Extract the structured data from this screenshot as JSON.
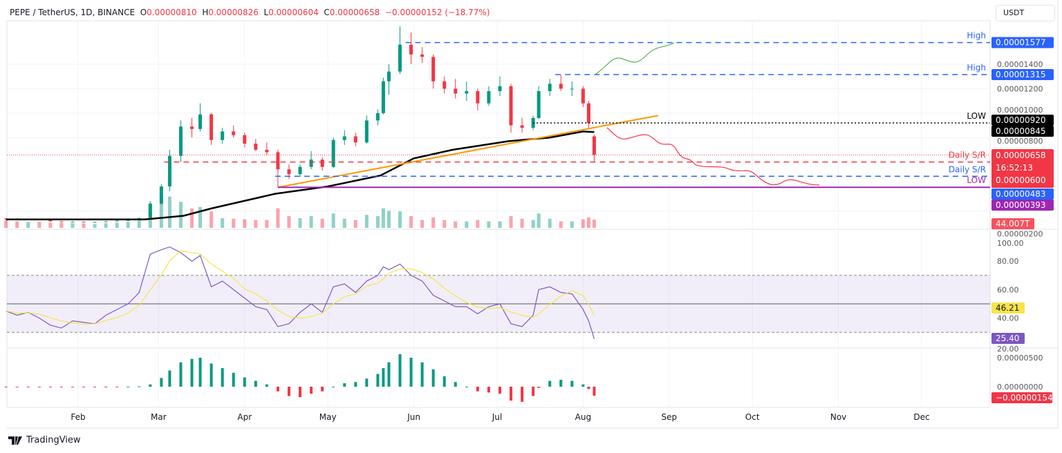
{
  "header": {
    "symbol": "PEPE / TetherUS, 1D, BINANCE",
    "o_label": "O",
    "o": "0.00000810",
    "h_label": "H",
    "h": "0.00000826",
    "l_label": "L",
    "l": "0.00000604",
    "c_label": "C",
    "c": "0.00000658",
    "change": "−0.00000152 (−18.77%)"
  },
  "currency_button": "USDT",
  "brand": "TradingView",
  "colors": {
    "up": "#089981",
    "down": "#f23645",
    "ma200": "#000000",
    "trendline": "#ff9800",
    "blue": "#2962ff",
    "purple": "#9c27b0",
    "rsi": "#7e57c2",
    "rsi_ma": "#f7e44a"
  },
  "chart_data": {
    "type": "candlestick",
    "price_ticks": [
      "0.00001400",
      "0.00001200",
      "0.00001000",
      "0.00000800",
      "0.00000200"
    ],
    "price_tick_values": [
      1.4e-05,
      1.2e-05,
      1e-05,
      8e-06,
      2e-06
    ],
    "months": [
      "Feb",
      "Mar",
      "Apr",
      "May",
      "Jun",
      "Jul",
      "Aug",
      "Sep",
      "Oct",
      "Nov",
      "Dec"
    ],
    "month_dates": [
      "2024-02-01",
      "2024-03-01",
      "2024-04-01",
      "2024-05-01",
      "2024-06-01",
      "2024-07-01",
      "2024-08-01",
      "2024-09-01",
      "2024-10-01",
      "2024-11-01",
      "2024-12-01"
    ],
    "candle_fields": [
      "date",
      "open",
      "high",
      "low",
      "close",
      "volume_T",
      "rsi",
      "macd_hist"
    ],
    "candles": [
      [
        "2024-01-06",
        1.38e-06,
        1.42e-06,
        1.3e-06,
        1.35e-06,
        42,
        45,
        -5e-08
      ],
      [
        "2024-01-10",
        1.35e-06,
        1.4e-06,
        1.27e-06,
        1.3e-06,
        35,
        42,
        -6e-08
      ],
      [
        "2024-01-14",
        1.3e-06,
        1.36e-06,
        1.26e-06,
        1.32e-06,
        32,
        44,
        -5e-08
      ],
      [
        "2024-01-18",
        1.32e-06,
        1.34e-06,
        1.22e-06,
        1.25e-06,
        32,
        40,
        -7e-08
      ],
      [
        "2024-01-22",
        1.25e-06,
        1.27e-06,
        1.12e-06,
        1.15e-06,
        28,
        35,
        -1e-07
      ],
      [
        "2024-01-26",
        1.15e-06,
        1.18e-06,
        1.08e-06,
        1.1e-06,
        28,
        33,
        -1.2e-07
      ],
      [
        "2024-01-30",
        1.1e-06,
        1.16e-06,
        1.07e-06,
        1.12e-06,
        25,
        38,
        -1e-07
      ],
      [
        "2024-02-03",
        1.12e-06,
        1.14e-06,
        1.06e-06,
        1.1e-06,
        25,
        37,
        -9e-08
      ],
      [
        "2024-02-07",
        1.1e-06,
        1.13e-06,
        1.06e-06,
        1.1e-06,
        21,
        36,
        -7e-08
      ],
      [
        "2024-02-11",
        1.1e-06,
        1.18e-06,
        1.08e-06,
        1.15e-06,
        25,
        42,
        -4e-08
      ],
      [
        "2024-02-15",
        1.15e-06,
        1.24e-06,
        1.12e-06,
        1.2e-06,
        28,
        46,
        -2e-08
      ],
      [
        "2024-02-19",
        1.2e-06,
        1.3e-06,
        1.16e-06,
        1.25e-06,
        32,
        50,
        0
      ],
      [
        "2024-02-23",
        1.25e-06,
        1.45e-06,
        1.22e-06,
        1.4e-06,
        42,
        58,
        5e-08
      ],
      [
        "2024-02-27",
        1.4e-06,
        2.8e-06,
        1.38e-06,
        2.6e-06,
        122,
        85,
        4e-07
      ],
      [
        "2024-03-02",
        2.6e-06,
        4.2e-06,
        2.5e-06,
        4e-06,
        158,
        88,
        1.5e-06
      ],
      [
        "2024-03-05",
        4e-06,
        7e-06,
        3.6e-06,
        6.5e-06,
        168,
        90,
        2.8e-06
      ],
      [
        "2024-03-09",
        6.5e-06,
        9.4e-06,
        6e-06,
        8.9e-06,
        140,
        86,
        4.2e-06
      ],
      [
        "2024-03-13",
        8.9e-06,
        9.6e-06,
        8e-06,
        8.7e-06,
        105,
        80,
        4.8e-06
      ],
      [
        "2024-03-16",
        8.7e-06,
        1.08e-05,
        8.5e-06,
        9.9e-06,
        112,
        84,
        5e-06
      ],
      [
        "2024-03-20",
        9.9e-06,
        1e-05,
        7.4e-06,
        7.8e-06,
        88,
        62,
        4e-06
      ],
      [
        "2024-03-24",
        7.8e-06,
        8.8e-06,
        7.5e-06,
        8.5e-06,
        52,
        66,
        3.2e-06
      ],
      [
        "2024-03-28",
        8.5e-06,
        9e-06,
        8e-06,
        8.2e-06,
        49,
        60,
        2.4e-06
      ],
      [
        "2024-04-01",
        8.2e-06,
        8.4e-06,
        7.2e-06,
        7.5e-06,
        46,
        54,
        1.6e-06
      ],
      [
        "2024-04-05",
        7.5e-06,
        7.9e-06,
        6.9e-06,
        7e-06,
        42,
        48,
        1e-06
      ],
      [
        "2024-04-09",
        7e-06,
        7.6e-06,
        6.6e-06,
        6.8e-06,
        42,
        46,
        4e-07
      ],
      [
        "2024-04-13",
        6.8e-06,
        7e-06,
        3.93e-06,
        5.4e-06,
        105,
        34,
        -8e-07
      ],
      [
        "2024-04-17",
        5.4e-06,
        5.8e-06,
        4.6e-06,
        5e-06,
        63,
        36,
        -1.6e-06
      ],
      [
        "2024-04-21",
        5e-06,
        5.8e-06,
        4.8e-06,
        5.6e-06,
        52,
        44,
        -1.8e-06
      ],
      [
        "2024-04-25",
        5.6e-06,
        6.9e-06,
        5.4e-06,
        6.2e-06,
        63,
        50,
        -1.2e-06
      ],
      [
        "2024-04-29",
        6.2e-06,
        6.4e-06,
        5.3e-06,
        5.6e-06,
        49,
        44,
        -8e-07
      ],
      [
        "2024-05-03",
        5.6e-06,
        8e-06,
        5.5e-06,
        7.8e-06,
        77,
        62,
        0
      ],
      [
        "2024-05-07",
        7.8e-06,
        8.6e-06,
        7.4e-06,
        8.1e-06,
        49,
        64,
        6e-07
      ],
      [
        "2024-05-11",
        8.1e-06,
        8.4e-06,
        7.3e-06,
        7.6e-06,
        42,
        58,
        8e-07
      ],
      [
        "2024-05-15",
        7.6e-06,
        9.8e-06,
        7.5e-06,
        9.4e-06,
        70,
        66,
        1.4e-06
      ],
      [
        "2024-05-19",
        9.4e-06,
        1.03e-05,
        9e-06,
        1e-05,
        63,
        70,
        2.2e-06
      ],
      [
        "2024-05-21",
        1e-05,
        1.29e-05,
        9.9e-06,
        1.26e-05,
        105,
        76,
        3.2e-06
      ],
      [
        "2024-05-23",
        1.26e-05,
        1.4e-05,
        1.15e-05,
        1.34e-05,
        91,
        74,
        4.2e-06
      ],
      [
        "2024-05-27",
        1.34e-05,
        1.71e-05,
        1.32e-05,
        1.56e-05,
        88,
        78,
        5.6e-06
      ],
      [
        "2024-05-31",
        1.56e-05,
        1.66e-05,
        1.4e-05,
        1.48e-05,
        63,
        70,
        5e-06
      ],
      [
        "2024-06-04",
        1.48e-05,
        1.54e-05,
        1.41e-05,
        1.46e-05,
        42,
        66,
        4.2e-06
      ],
      [
        "2024-06-08",
        1.46e-05,
        1.48e-05,
        1.2e-05,
        1.26e-05,
        56,
        56,
        3e-06
      ],
      [
        "2024-06-12",
        1.26e-05,
        1.3e-05,
        1.16e-05,
        1.2e-05,
        42,
        52,
        1.8e-06
      ],
      [
        "2024-06-16",
        1.2e-05,
        1.28e-05,
        1.12e-05,
        1.16e-05,
        35,
        48,
        8e-07
      ],
      [
        "2024-06-20",
        1.16e-05,
        1.26e-05,
        1.1e-05,
        1.18e-05,
        35,
        48,
        0
      ],
      [
        "2024-06-24",
        1.18e-05,
        1.2e-05,
        1.02e-05,
        1.08e-05,
        42,
        43,
        -8e-07
      ],
      [
        "2024-06-28",
        1.08e-05,
        1.22e-05,
        1.06e-05,
        1.18e-05,
        35,
        48,
        -1e-06
      ],
      [
        "2024-07-02",
        1.18e-05,
        1.3e-05,
        1.14e-05,
        1.22e-05,
        35,
        50,
        -1.2e-06
      ],
      [
        "2024-07-06",
        1.22e-05,
        1.24e-05,
        8.4e-06,
        9e-06,
        63,
        36,
        -2.4e-06
      ],
      [
        "2024-07-10",
        9e-06,
        9.6e-06,
        8.4e-06,
        8.8e-06,
        49,
        34,
        -2.6e-06
      ],
      [
        "2024-07-14",
        8.8e-06,
        9.8e-06,
        8.6e-06,
        9.6e-06,
        42,
        42,
        -1.6e-06
      ],
      [
        "2024-07-16",
        9.6e-06,
        1.22e-05,
        9.5e-06,
        1.18e-05,
        77,
        60,
        -2e-07
      ],
      [
        "2024-07-20",
        1.18e-05,
        1.28e-05,
        1.14e-05,
        1.24e-05,
        49,
        62,
        1e-06
      ],
      [
        "2024-07-24",
        1.24e-05,
        1.31e-05,
        1.18e-05,
        1.2e-05,
        35,
        58,
        1.2e-06
      ],
      [
        "2024-07-28",
        1.2e-05,
        1.26e-05,
        1.14e-05,
        1.2e-05,
        35,
        57,
        1e-06
      ],
      [
        "2024-08-01",
        1.2e-05,
        1.22e-05,
        1.05e-05,
        1.08e-05,
        46,
        46,
        4e-07
      ],
      [
        "2024-08-03",
        1.08e-05,
        1.1e-05,
        8.8e-06,
        9.2e-06,
        56,
        38,
        -4e-07
      ],
      [
        "2024-08-05",
        8.1e-06,
        8.26e-06,
        6.04e-06,
        6.58e-06,
        44.007,
        25.4,
        -1.54e-06
      ]
    ],
    "ma200": [
      [
        "2024-01-06",
        1.3e-06
      ],
      [
        "2024-02-25",
        1.3e-06
      ],
      [
        "2024-03-10",
        1.6e-06
      ],
      [
        "2024-03-20",
        2.2e-06
      ],
      [
        "2024-04-12",
        3.4e-06
      ],
      [
        "2024-05-01",
        4e-06
      ],
      [
        "2024-05-20",
        4.9e-06
      ],
      [
        "2024-06-01",
        6.3e-06
      ],
      [
        "2024-06-15",
        7e-06
      ],
      [
        "2024-07-05",
        7.7e-06
      ],
      [
        "2024-07-20",
        8e-06
      ],
      [
        "2024-08-01",
        8.5e-06
      ],
      [
        "2024-08-05",
        8.45e-06
      ]
    ],
    "trendline": [
      [
        "2024-04-13",
        3.93e-06
      ],
      [
        "2024-08-28",
        9.8e-06
      ]
    ],
    "levels": [
      {
        "label": "High",
        "value": 1.577e-05,
        "price": "0.00001577",
        "color": "#2962ff",
        "from": "2024-05-29",
        "style": "dashed"
      },
      {
        "label": "High",
        "value": 1.315e-05,
        "price": "0.00001315",
        "color": "#2962ff",
        "from": "2024-07-22",
        "style": "dashed"
      },
      {
        "label": "LOW",
        "value": 9.2e-06,
        "price": "0.00000920",
        "color": "#000000",
        "from": "2024-07-14",
        "style": "dotted"
      },
      {
        "label": "Daily S/R",
        "value": 6e-06,
        "price": "0.00000600",
        "color": "#f23645",
        "from": "2024-03-03",
        "style": "dashed"
      },
      {
        "label": "Daily S/R",
        "value": 4.83e-06,
        "price": "0.00000483",
        "color": "#2962ff",
        "from": "2024-04-12",
        "style": "dashed"
      },
      {
        "label": "LOW",
        "value": 3.93e-06,
        "price": "0.00000393",
        "color": "#9c27b0",
        "from": "2024-04-13",
        "style": "solid"
      }
    ],
    "last_price": {
      "price": "0.00000658",
      "countdown": "16:52:13"
    },
    "ma200_label": "0.00000845",
    "volume_label": "44.007T",
    "rsi": {
      "ticks": [
        "100.00",
        "80.00",
        "60.00",
        "40.00",
        "20.00"
      ],
      "tick_values": [
        100,
        80,
        60,
        40,
        20
      ],
      "bands": [
        70,
        50,
        30
      ],
      "rsi_ma_label": "46.21",
      "rsi_label": "25.40"
    },
    "macd": {
      "ticks": [
        "0.00000500",
        "0.00000000"
      ],
      "tick_values": [
        5e-06,
        0
      ],
      "label": "−0.00000154"
    }
  }
}
